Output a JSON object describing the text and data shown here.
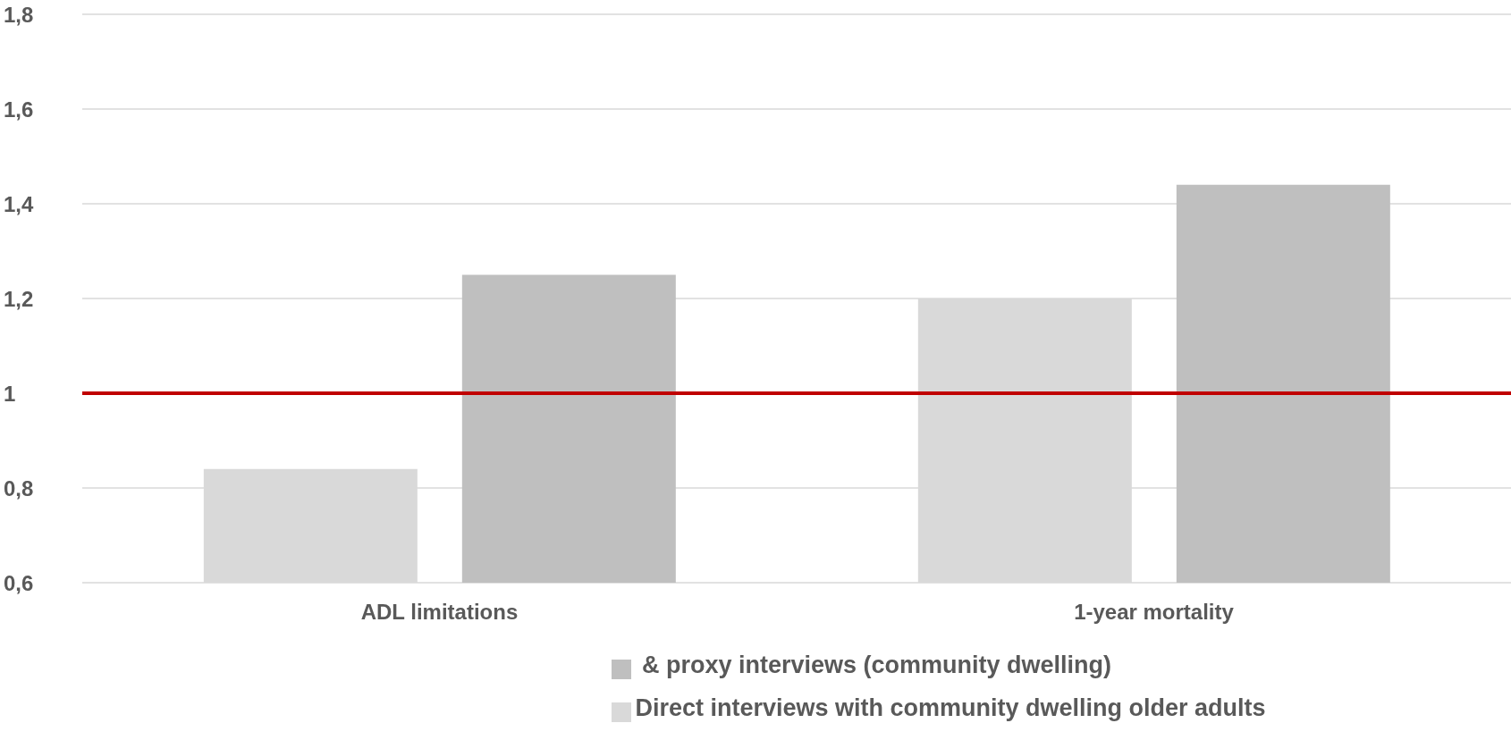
{
  "chart_data": {
    "type": "bar",
    "categories": [
      "ADL limitations",
      "1-year mortality"
    ],
    "series": [
      {
        "name": "Direct interviews with community dwelling older adults",
        "color": "#d9d9d9",
        "values": [
          0.84,
          1.2
        ]
      },
      {
        "name": " & proxy interviews (community dwelling)",
        "color": "#bfbfbf",
        "values": [
          1.25,
          1.44
        ]
      }
    ],
    "ylim": [
      0.6,
      1.8
    ],
    "yticks": [
      {
        "value": 0.6,
        "label": "0,6"
      },
      {
        "value": 0.8,
        "label": "0,8"
      },
      {
        "value": 1,
        "label": "1"
      },
      {
        "value": 1.2,
        "label": "1,2"
      },
      {
        "value": 1.4,
        "label": "1,4"
      },
      {
        "value": 1.6,
        "label": "1,6"
      },
      {
        "value": 1.8,
        "label": "1,8"
      }
    ],
    "ref_lines": [
      {
        "axis": "y",
        "value": 1,
        "color": "#c00000"
      }
    ],
    "grid": "y",
    "legend": "bottom"
  }
}
